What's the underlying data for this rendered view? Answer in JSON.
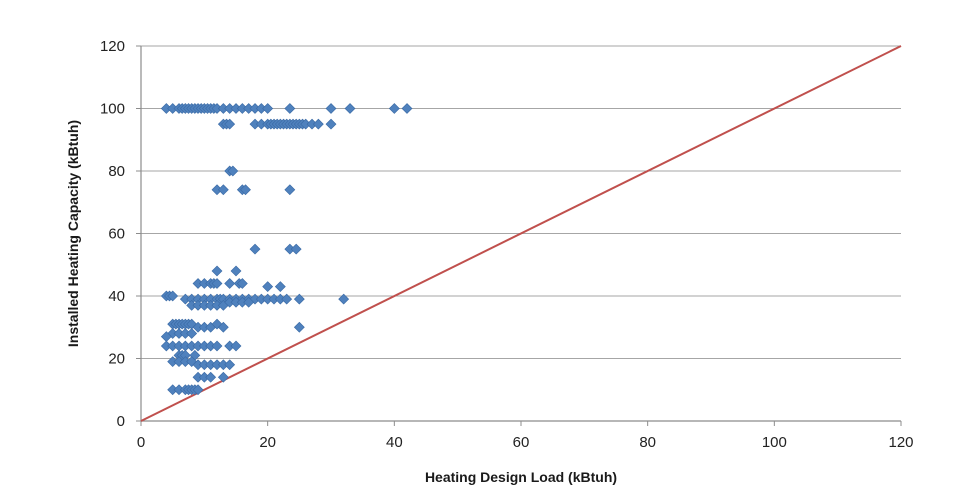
{
  "chart_data": {
    "type": "scatter",
    "title": "",
    "xlabel": "Heating Design Load (kBtuh)",
    "ylabel": "Installed Heating Capacity (kBtuh)",
    "xlim": [
      0,
      120
    ],
    "ylim": [
      0,
      120
    ],
    "x_ticks": [
      0,
      20,
      40,
      60,
      80,
      100,
      120
    ],
    "y_ticks": [
      0,
      20,
      40,
      60,
      80,
      100,
      120
    ],
    "x_tick_labels": [
      "0",
      "20",
      "40",
      "60",
      "80",
      "100",
      "120"
    ],
    "y_tick_labels": [
      "0",
      "20",
      "40",
      "60",
      "80",
      "100",
      "120"
    ],
    "grid": "horizontal",
    "legend": "none",
    "colors": {
      "points": "#4f81bd",
      "reference_line": "#c0504d",
      "grid": "#a6a6a6",
      "axis": "#8c8c8c"
    },
    "reference_line": {
      "x": [
        0,
        120
      ],
      "y": [
        0,
        120
      ]
    },
    "series": [
      {
        "marker": "diamond",
        "points": [
          [
            4,
            100
          ],
          [
            5,
            100
          ],
          [
            6,
            100
          ],
          [
            6.5,
            100
          ],
          [
            7,
            100
          ],
          [
            7.5,
            100
          ],
          [
            8,
            100
          ],
          [
            8.5,
            100
          ],
          [
            9,
            100
          ],
          [
            9.5,
            100
          ],
          [
            10,
            100
          ],
          [
            10.5,
            100
          ],
          [
            11,
            100
          ],
          [
            11.5,
            100
          ],
          [
            12,
            100
          ],
          [
            13,
            100
          ],
          [
            14,
            100
          ],
          [
            15,
            100
          ],
          [
            16,
            100
          ],
          [
            17,
            100
          ],
          [
            18,
            100
          ],
          [
            19,
            100
          ],
          [
            20,
            100
          ],
          [
            23.5,
            100
          ],
          [
            30,
            100
          ],
          [
            33,
            100
          ],
          [
            40,
            100
          ],
          [
            42,
            100
          ],
          [
            13,
            95
          ],
          [
            13.5,
            95
          ],
          [
            14,
            95
          ],
          [
            18,
            95
          ],
          [
            19,
            95
          ],
          [
            20,
            95
          ],
          [
            20.5,
            95
          ],
          [
            21,
            95
          ],
          [
            21.5,
            95
          ],
          [
            22,
            95
          ],
          [
            22.5,
            95
          ],
          [
            23,
            95
          ],
          [
            23.5,
            95
          ],
          [
            24,
            95
          ],
          [
            24.5,
            95
          ],
          [
            25,
            95
          ],
          [
            25.5,
            95
          ],
          [
            26,
            95
          ],
          [
            27,
            95
          ],
          [
            28,
            95
          ],
          [
            30,
            95
          ],
          [
            14,
            80
          ],
          [
            14.5,
            80
          ],
          [
            12,
            74
          ],
          [
            13,
            74
          ],
          [
            16,
            74
          ],
          [
            16.5,
            74
          ],
          [
            23.5,
            74
          ],
          [
            18,
            55
          ],
          [
            23.5,
            55
          ],
          [
            24.5,
            55
          ],
          [
            12,
            48
          ],
          [
            15,
            48
          ],
          [
            9,
            44
          ],
          [
            10,
            44
          ],
          [
            11,
            44
          ],
          [
            11.5,
            44
          ],
          [
            12,
            44
          ],
          [
            14,
            44
          ],
          [
            15.5,
            44
          ],
          [
            16,
            44
          ],
          [
            20,
            43
          ],
          [
            22,
            43
          ],
          [
            4,
            40
          ],
          [
            4.5,
            40
          ],
          [
            5,
            40
          ],
          [
            7,
            39
          ],
          [
            8,
            39
          ],
          [
            9,
            39
          ],
          [
            10,
            39
          ],
          [
            11,
            39
          ],
          [
            12,
            39
          ],
          [
            12.5,
            39
          ],
          [
            13,
            39
          ],
          [
            14,
            39
          ],
          [
            15,
            39
          ],
          [
            16,
            39
          ],
          [
            17,
            39
          ],
          [
            18,
            39
          ],
          [
            19,
            39
          ],
          [
            20,
            39
          ],
          [
            21,
            39
          ],
          [
            22,
            39
          ],
          [
            23,
            39
          ],
          [
            25,
            39
          ],
          [
            32,
            39
          ],
          [
            8,
            37
          ],
          [
            9,
            37
          ],
          [
            10,
            37
          ],
          [
            11,
            37
          ],
          [
            12,
            37
          ],
          [
            13,
            37
          ],
          [
            14,
            38
          ],
          [
            15,
            38
          ],
          [
            16,
            38
          ],
          [
            17,
            38
          ],
          [
            25,
            30
          ],
          [
            5,
            31
          ],
          [
            5.5,
            31
          ],
          [
            6,
            31
          ],
          [
            6.5,
            31
          ],
          [
            7,
            31
          ],
          [
            7.5,
            31
          ],
          [
            8,
            31
          ],
          [
            9,
            30
          ],
          [
            10,
            30
          ],
          [
            11,
            30
          ],
          [
            12,
            31
          ],
          [
            13,
            30
          ],
          [
            5,
            28
          ],
          [
            6,
            28
          ],
          [
            7,
            28
          ],
          [
            8,
            28
          ],
          [
            4,
            27
          ],
          [
            4,
            24
          ],
          [
            5,
            24
          ],
          [
            6,
            24
          ],
          [
            7,
            24
          ],
          [
            8,
            24
          ],
          [
            9,
            24
          ],
          [
            10,
            24
          ],
          [
            11,
            24
          ],
          [
            12,
            24
          ],
          [
            14,
            24
          ],
          [
            15,
            24
          ],
          [
            6,
            21
          ],
          [
            6.5,
            21
          ],
          [
            7,
            21
          ],
          [
            8.5,
            21
          ],
          [
            5,
            19
          ],
          [
            6,
            19
          ],
          [
            7,
            19
          ],
          [
            8,
            19
          ],
          [
            9,
            18
          ],
          [
            10,
            18
          ],
          [
            11,
            18
          ],
          [
            12,
            18
          ],
          [
            13,
            18
          ],
          [
            14,
            18
          ],
          [
            9,
            14
          ],
          [
            10,
            14
          ],
          [
            11,
            14
          ],
          [
            13,
            14
          ],
          [
            5,
            10
          ],
          [
            6,
            10
          ],
          [
            7,
            10
          ],
          [
            7.5,
            10
          ],
          [
            8,
            10
          ],
          [
            8.5,
            10
          ],
          [
            9,
            10
          ]
        ]
      }
    ]
  }
}
